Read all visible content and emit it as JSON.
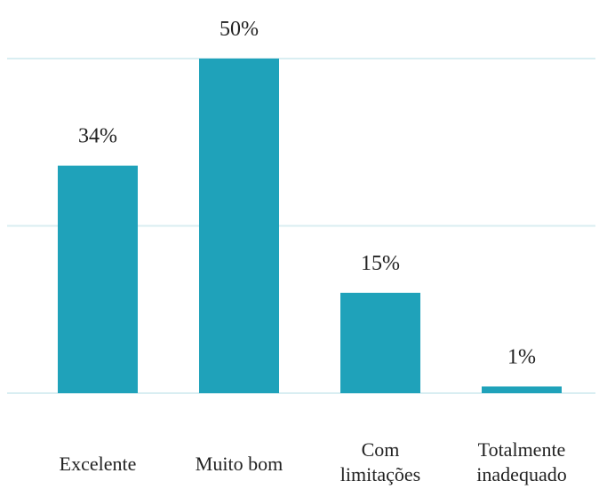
{
  "chart_data": {
    "type": "bar",
    "categories": [
      [
        "Excelente"
      ],
      [
        "Muito bom"
      ],
      [
        "Com",
        "limitações"
      ],
      [
        "Totalmente",
        "inadequado"
      ]
    ],
    "values": [
      34,
      50,
      15,
      1
    ],
    "data_labels": [
      "34%",
      "50%",
      "15%",
      "1%"
    ],
    "ylim": [
      0,
      50
    ],
    "grid": true,
    "legend": "none",
    "colors": {
      "bar": "#1fa2ba",
      "grid": "#d9eef2",
      "text": "#222222"
    }
  }
}
